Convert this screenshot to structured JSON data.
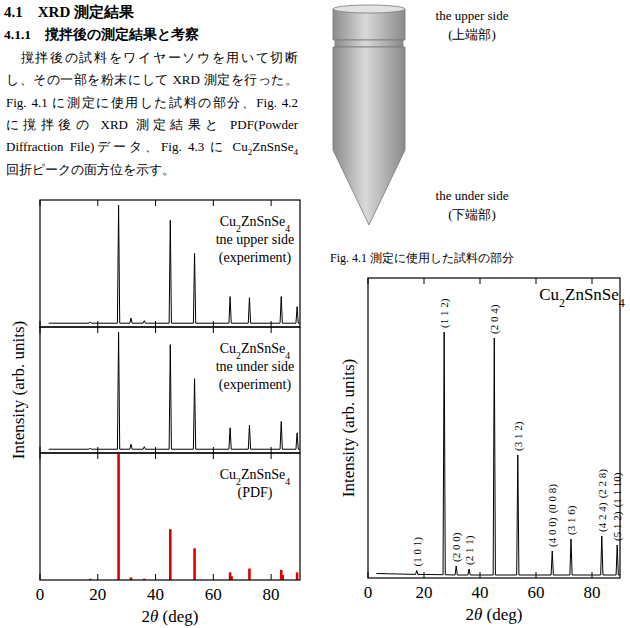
{
  "heading": "4.1　XRD 測定結果",
  "subheading": "4.1.1　撹拌後の測定結果と考察",
  "paragraph": [
    "　撹拌後の試料をワイヤーソウを用いて切断",
    "し、その一部を粉末にして XRD 測定を行った。",
    "Fig. 4.1 に測定に使用した試料の部分、Fig. 4.2",
    "に撹拌後の XRD 測定結果と PDF(Powder",
    "Diffraction File)データ、Fig. 4.3 に Cu2ZnSnSe4",
    "回折ピークの面方位を示す。"
  ],
  "figure_4_1": {
    "upper": [
      "the upper side",
      "(上端部)"
    ],
    "under": [
      "the under side",
      "(下端部)"
    ],
    "caption": "Fig. 4.1 測定に使用した試料の部分"
  },
  "chart_data": [
    {
      "type": "line",
      "annotation": [
        "Cu2ZnSnSe4",
        "tne upper side",
        "(experiment)"
      ],
      "x": [
        3,
        17.0,
        17.4,
        17.8,
        26.8,
        27.2,
        27.6,
        31.1,
        31.5,
        31.9,
        35.7,
        36.1,
        36.5,
        44.7,
        45.1,
        45.5,
        53.1,
        53.5,
        53.9,
        65.4,
        65.8,
        66.2,
        72.1,
        72.5,
        72.9,
        83.1,
        83.5,
        83.9,
        88.6,
        89.0,
        89.4,
        90
      ],
      "series": [
        {
          "color": "#000000",
          "values": [
            3,
            3,
            4,
            3,
            3,
            96,
            3,
            3,
            7,
            3,
            3,
            5,
            3,
            3,
            84,
            3,
            3,
            58,
            3,
            3,
            24,
            3,
            3,
            23,
            3,
            3,
            24,
            3,
            3,
            16,
            3,
            3
          ]
        }
      ],
      "xlim": [
        0,
        90
      ],
      "ylim": [
        0,
        100
      ],
      "xticks": [
        0,
        20,
        40,
        60,
        80
      ],
      "tick_labels": false
    },
    {
      "type": "line",
      "annotation": [
        "Cu2ZnSnSe4",
        "tne under side",
        "(experiment)"
      ],
      "ylabel": "Intensity (arb. units)",
      "x": [
        3,
        17.0,
        17.4,
        17.8,
        26.8,
        27.2,
        27.6,
        31.1,
        31.5,
        31.9,
        35.7,
        36.1,
        36.5,
        44.7,
        45.1,
        45.5,
        53.1,
        53.5,
        53.9,
        65.4,
        65.8,
        66.2,
        72.1,
        72.5,
        72.9,
        83.1,
        83.5,
        83.9,
        88.6,
        89.0,
        89.4,
        90
      ],
      "series": [
        {
          "color": "#000000",
          "values": [
            3,
            3,
            4,
            3,
            3,
            96,
            3,
            3,
            7,
            3,
            3,
            5,
            3,
            3,
            86,
            3,
            3,
            59,
            3,
            3,
            20,
            3,
            3,
            22,
            3,
            3,
            25,
            3,
            3,
            16,
            3,
            3
          ]
        }
      ],
      "xlim": [
        0,
        90
      ],
      "ylim": [
        0,
        100
      ],
      "xticks": [
        0,
        20,
        40,
        60,
        80
      ],
      "tick_labels": false
    },
    {
      "type": "bar",
      "annotation": [
        "Cu2ZnSnSe4",
        "(PDF)"
      ],
      "xlabel": "2θ (deg)",
      "x": [
        17.4,
        27.2,
        31.5,
        36.1,
        45.1,
        53.5,
        65.8,
        66.3,
        72.5,
        83.5,
        84.0,
        89.0
      ],
      "values": [
        1,
        100,
        2,
        1,
        40,
        25,
        6,
        3,
        9,
        8,
        4,
        6
      ],
      "color": "#e00000",
      "xlim": [
        0,
        90
      ],
      "ylim": [
        0,
        100
      ],
      "xticks": [
        0,
        20,
        40,
        60,
        80
      ],
      "tick_labels": "x"
    },
    {
      "type": "line",
      "title": "Cu2ZnSnSe4",
      "xlabel": "2θ (deg)",
      "ylabel": "Intensity (arb. units)",
      "x": [
        3,
        17.0,
        17.4,
        17.8,
        26.8,
        27.2,
        27.6,
        31.1,
        31.5,
        31.9,
        35.7,
        36.1,
        36.5,
        44.7,
        45.1,
        45.5,
        53.1,
        53.5,
        53.9,
        65.4,
        65.8,
        66.2,
        72.1,
        72.5,
        72.9,
        83.1,
        83.5,
        83.9,
        88.6,
        89.0,
        89.4,
        90
      ],
      "series": [
        {
          "color": "#000000",
          "values": [
            1.5,
            1.2,
            2.5,
            1.2,
            1.1,
            82,
            1.1,
            1.0,
            4,
            1.0,
            1.0,
            3,
            1.0,
            1.0,
            80,
            1.0,
            1.0,
            41,
            1.0,
            1.0,
            9,
            1.0,
            1.0,
            13,
            1.0,
            1.0,
            14,
            1.0,
            1.0,
            11,
            1.0,
            1.0
          ]
        }
      ],
      "peak_labels": [
        {
          "x": 17.4,
          "labels": [
            "(1 0 1)"
          ]
        },
        {
          "x": 27.2,
          "labels": [
            "(1 1 2)"
          ]
        },
        {
          "x": 31.5,
          "labels": [
            "(2 0 0)"
          ]
        },
        {
          "x": 36.1,
          "labels": [
            "(2 1 1)"
          ]
        },
        {
          "x": 45.1,
          "labels": [
            "(2 0 4)"
          ]
        },
        {
          "x": 53.5,
          "labels": [
            "(3 1 2)"
          ]
        },
        {
          "x": 65.8,
          "labels": [
            "(4 0 0)",
            "(0 0 8)"
          ]
        },
        {
          "x": 72.5,
          "labels": [
            "(3 1 6)"
          ]
        },
        {
          "x": 83.5,
          "labels": [
            "(4 2 4)",
            "(2 2 8)"
          ]
        },
        {
          "x": 89.0,
          "labels": [
            "(5 1 2)",
            "(1 1 10)"
          ]
        }
      ],
      "xlim": [
        0,
        90
      ],
      "ylim": [
        0,
        100
      ],
      "xticks": [
        0,
        20,
        40,
        60,
        80
      ],
      "tick_labels": "x"
    }
  ]
}
